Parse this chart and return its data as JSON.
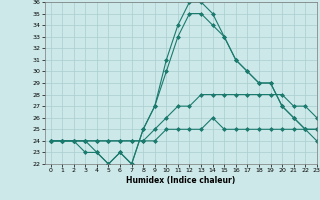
{
  "title": "",
  "xlabel": "Humidex (Indice chaleur)",
  "x": [
    0,
    1,
    2,
    3,
    4,
    5,
    6,
    7,
    8,
    9,
    10,
    11,
    12,
    13,
    14,
    15,
    16,
    17,
    18,
    19,
    20,
    21,
    22,
    23
  ],
  "line1": [
    24,
    24,
    24,
    24,
    23,
    22,
    23,
    22,
    25,
    27,
    31,
    34,
    36,
    36,
    35,
    33,
    31,
    30,
    29,
    29,
    27,
    26,
    25,
    25
  ],
  "line2": [
    24,
    24,
    24,
    23,
    23,
    22,
    23,
    22,
    25,
    27,
    30,
    33,
    35,
    35,
    34,
    33,
    31,
    30,
    29,
    29,
    27,
    26,
    25,
    24
  ],
  "line3": [
    24,
    24,
    24,
    24,
    24,
    24,
    24,
    24,
    24,
    25,
    26,
    27,
    27,
    28,
    28,
    28,
    28,
    28,
    28,
    28,
    28,
    27,
    27,
    26
  ],
  "line4": [
    24,
    24,
    24,
    24,
    24,
    24,
    24,
    24,
    24,
    24,
    25,
    25,
    25,
    25,
    26,
    25,
    25,
    25,
    25,
    25,
    25,
    25,
    25,
    25
  ],
  "xlim": [
    -0.5,
    23
  ],
  "ylim": [
    22,
    36
  ],
  "yticks": [
    22,
    23,
    24,
    25,
    26,
    27,
    28,
    29,
    30,
    31,
    32,
    33,
    34,
    35,
    36
  ],
  "xticks": [
    0,
    1,
    2,
    3,
    4,
    5,
    6,
    7,
    8,
    9,
    10,
    11,
    12,
    13,
    14,
    15,
    16,
    17,
    18,
    19,
    20,
    21,
    22,
    23
  ],
  "line_color": "#1a7a6e",
  "bg_color": "#cde8e8",
  "grid_color": "#aacece",
  "markersize": 2.0,
  "linewidth": 0.8
}
